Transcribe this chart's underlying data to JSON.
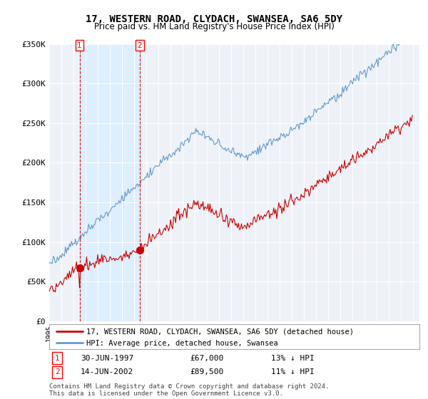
{
  "title": "17, WESTERN ROAD, CLYDACH, SWANSEA, SA6 5DY",
  "subtitle": "Price paid vs. HM Land Registry's House Price Index (HPI)",
  "ylim": [
    0,
    350000
  ],
  "yticks": [
    0,
    50000,
    100000,
    150000,
    200000,
    250000,
    300000,
    350000
  ],
  "ytick_labels": [
    "£0",
    "£50K",
    "£100K",
    "£150K",
    "£200K",
    "£250K",
    "£300K",
    "£350K"
  ],
  "sale1_year": 1997.5,
  "sale1_price": 67000,
  "sale2_year": 2002.45,
  "sale2_price": 89500,
  "sale1_date_str": "30-JUN-1997",
  "sale1_price_str": "£67,000",
  "sale1_hpi_str": "13% ↓ HPI",
  "sale2_date_str": "14-JUN-2002",
  "sale2_price_str": "£89,500",
  "sale2_hpi_str": "11% ↓ HPI",
  "line1_color": "#cc0000",
  "line2_color": "#6699cc",
  "shade_color": "#ddeeff",
  "bg_color": "#eef2f8",
  "legend1_text": "17, WESTERN ROAD, CLYDACH, SWANSEA, SA6 5DY (detached house)",
  "legend2_text": "HPI: Average price, detached house, Swansea",
  "footer": "Contains HM Land Registry data © Crown copyright and database right 2024.\nThis data is licensed under the Open Government Licence v3.0.",
  "xstart": 1995.0,
  "xend": 2025.0
}
